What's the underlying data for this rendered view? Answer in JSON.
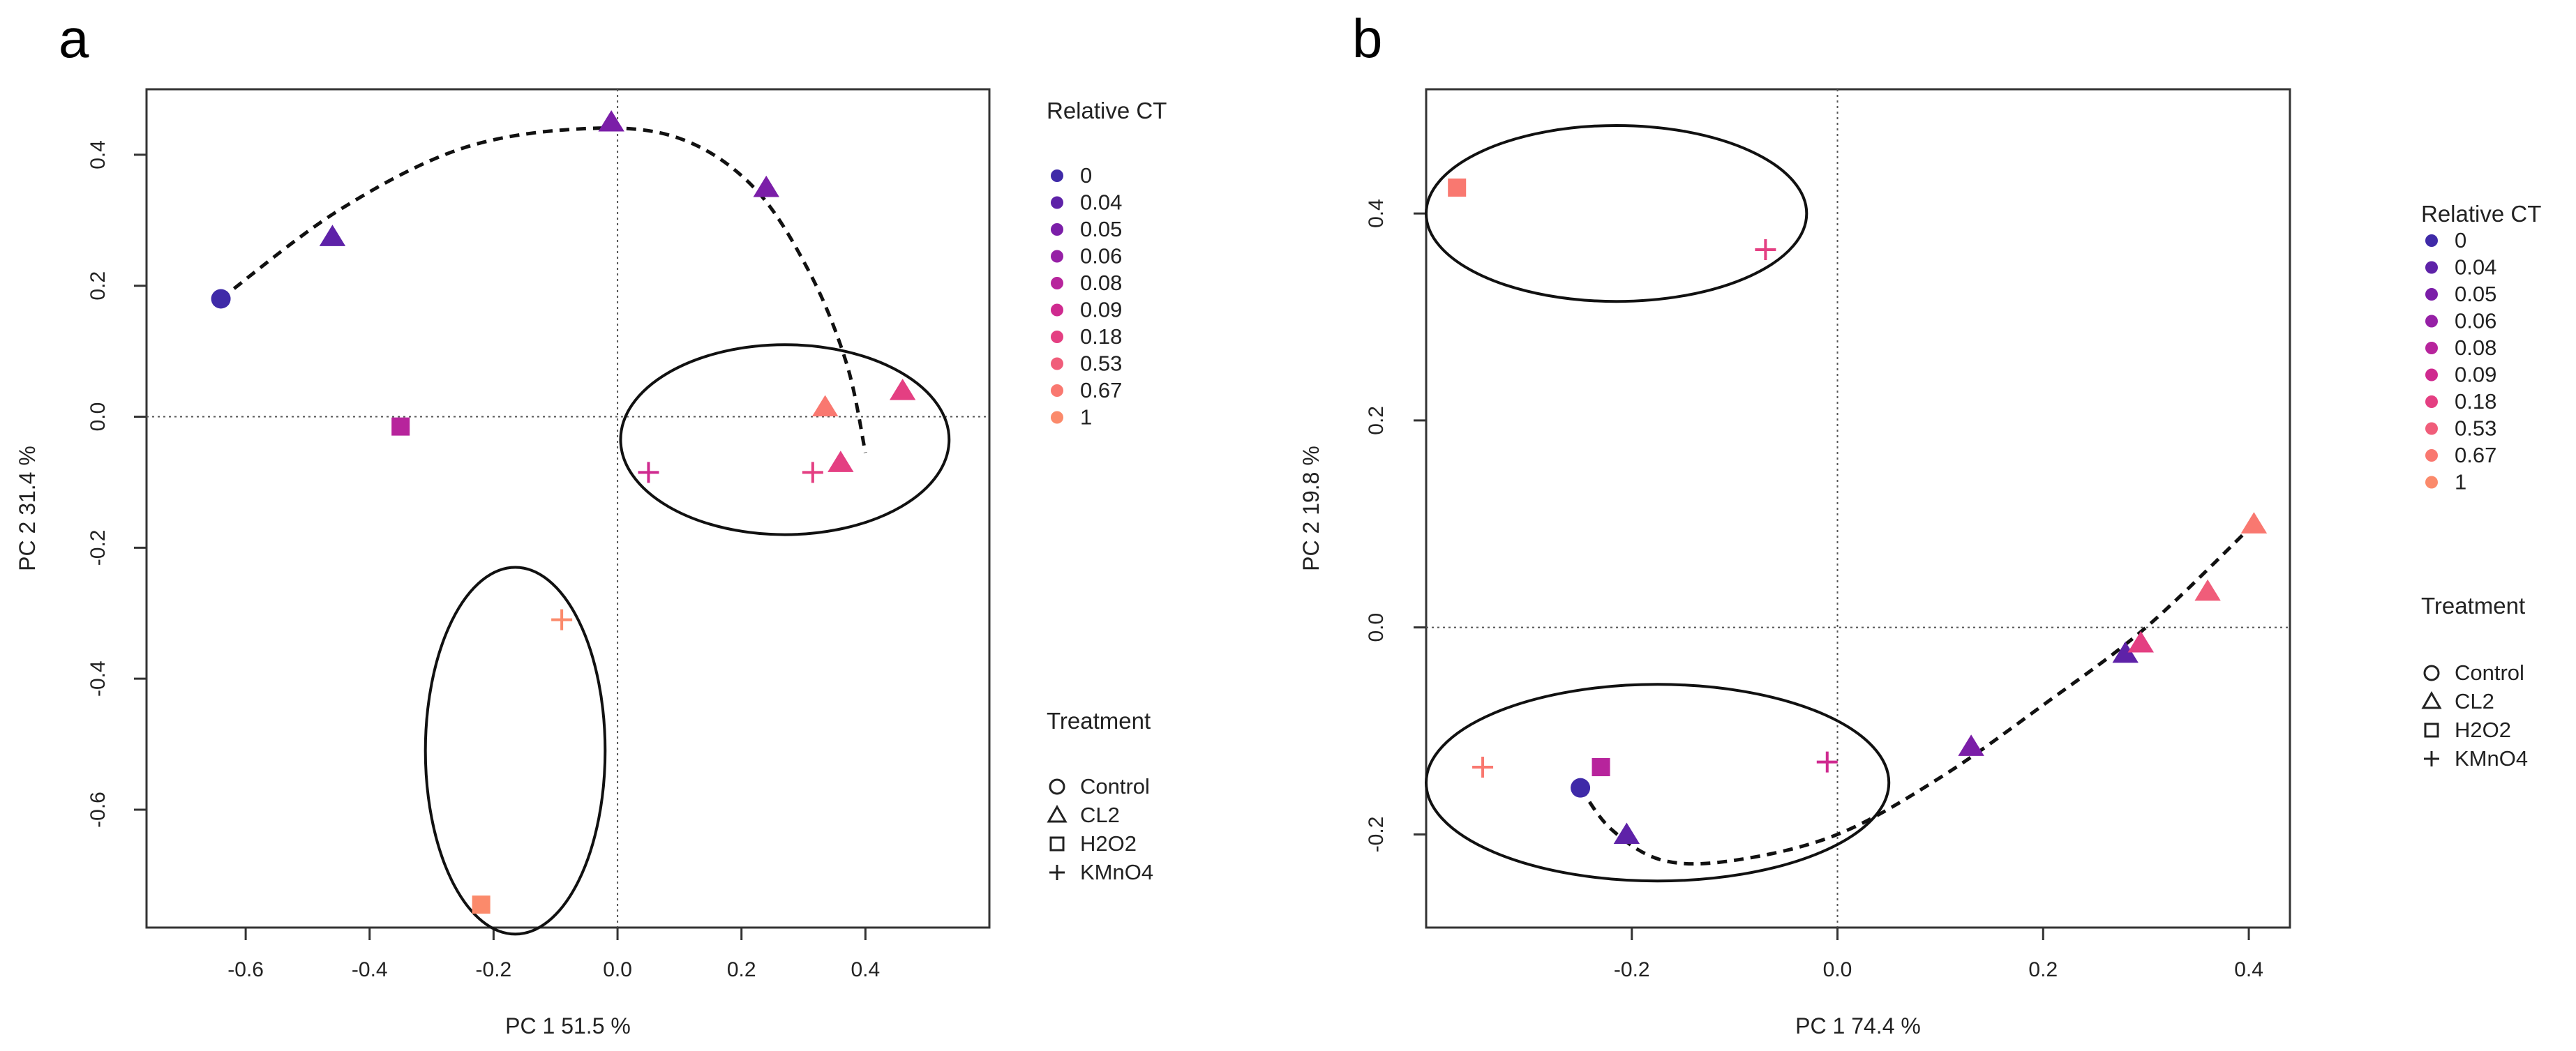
{
  "legend_titles": {
    "color": "Relative CT",
    "shape": "Treatment"
  },
  "color_legend": [
    {
      "label": "0",
      "color": "#3f2aa8"
    },
    {
      "label": "0.04",
      "color": "#5e22a8"
    },
    {
      "label": "0.05",
      "color": "#7b1ea8"
    },
    {
      "label": "0.06",
      "color": "#9620a6"
    },
    {
      "label": "0.08",
      "color": "#b7249c"
    },
    {
      "label": "0.09",
      "color": "#cf2a8f"
    },
    {
      "label": "0.18",
      "color": "#e43f82"
    },
    {
      "label": "0.53",
      "color": "#f05d7a"
    },
    {
      "label": "0.67",
      "color": "#f97870"
    },
    {
      "label": "1",
      "color": "#fb8a6b"
    }
  ],
  "shape_legend": [
    {
      "label": "Control",
      "shape": "circle"
    },
    {
      "label": "CL2",
      "shape": "triangle"
    },
    {
      "label": "H2O2",
      "shape": "square"
    },
    {
      "label": "KMnO4",
      "shape": "plus"
    }
  ],
  "chart_data": [
    {
      "panel": "a",
      "type": "scatter",
      "xlabel": "PC 1  51.5 %",
      "ylabel": "PC 2  31.4 %",
      "xlim": [
        -0.76,
        0.6
      ],
      "ylim": [
        -0.78,
        0.5
      ],
      "xticks": [
        -0.6,
        -0.4,
        -0.2,
        0.0,
        0.2,
        0.4
      ],
      "yticks": [
        -0.6,
        -0.4,
        -0.2,
        0.0,
        0.2,
        0.4
      ],
      "xtick_labels": [
        "-0.6",
        "-0.4",
        "-0.2",
        "0.0",
        "0.2",
        "0.4"
      ],
      "ytick_labels": [
        "-0.6",
        "-0.4",
        "-0.2",
        "0.0",
        "0.2",
        "0.4"
      ],
      "reference_lines": {
        "x": 0,
        "y": 0
      },
      "points": [
        {
          "x": -0.64,
          "y": 0.18,
          "shape": "circle",
          "ct": "0"
        },
        {
          "x": -0.46,
          "y": 0.275,
          "shape": "triangle",
          "ct": "0.04"
        },
        {
          "x": -0.01,
          "y": 0.45,
          "shape": "triangle",
          "ct": "0.05"
        },
        {
          "x": 0.24,
          "y": 0.35,
          "shape": "triangle",
          "ct": "0.05"
        },
        {
          "x": -0.35,
          "y": -0.015,
          "shape": "square",
          "ct": "0.08"
        },
        {
          "x": 0.05,
          "y": -0.085,
          "shape": "plus",
          "ct": "0.09"
        },
        {
          "x": 0.315,
          "y": -0.085,
          "shape": "plus",
          "ct": "0.18"
        },
        {
          "x": 0.36,
          "y": -0.07,
          "shape": "triangle",
          "ct": "0.18"
        },
        {
          "x": 0.46,
          "y": 0.04,
          "shape": "triangle",
          "ct": "0.18"
        },
        {
          "x": 0.335,
          "y": 0.015,
          "shape": "triangle",
          "ct": "0.67"
        },
        {
          "x": -0.09,
          "y": -0.31,
          "shape": "plus",
          "ct": "1"
        },
        {
          "x": -0.22,
          "y": -0.745,
          "shape": "square",
          "ct": "1"
        }
      ],
      "trend_curve": [
        [
          -0.64,
          0.18
        ],
        [
          -0.45,
          0.315
        ],
        [
          -0.25,
          0.41
        ],
        [
          -0.05,
          0.44
        ],
        [
          0.1,
          0.425
        ],
        [
          0.22,
          0.35
        ],
        [
          0.31,
          0.22
        ],
        [
          0.37,
          0.08
        ],
        [
          0.4,
          -0.055
        ]
      ],
      "ellipses": [
        {
          "cx": 0.27,
          "cy": -0.035,
          "rx": 0.265,
          "ry": 0.145
        },
        {
          "cx": -0.165,
          "cy": -0.51,
          "rx": 0.145,
          "ry": 0.28
        }
      ]
    },
    {
      "panel": "b",
      "type": "scatter",
      "xlabel": "PC 1  74.4 %",
      "ylabel": "PC 2  19.8 %",
      "xlim": [
        -0.4,
        0.44
      ],
      "ylim": [
        -0.29,
        0.52
      ],
      "xticks": [
        -0.2,
        0.0,
        0.2,
        0.4
      ],
      "yticks": [
        -0.2,
        0.0,
        0.2,
        0.4
      ],
      "xtick_labels": [
        "-0.2",
        "0.0",
        "0.2",
        "0.4"
      ],
      "ytick_labels": [
        "-0.2",
        "0.0",
        "0.2",
        "0.4"
      ],
      "reference_lines": {
        "x": 0,
        "y": 0
      },
      "points": [
        {
          "x": -0.25,
          "y": -0.155,
          "shape": "circle",
          "ct": "0"
        },
        {
          "x": -0.205,
          "y": -0.2,
          "shape": "triangle",
          "ct": "0.04"
        },
        {
          "x": 0.13,
          "y": -0.115,
          "shape": "triangle",
          "ct": "0.05"
        },
        {
          "x": 0.28,
          "y": -0.025,
          "shape": "triangle",
          "ct": "0.04"
        },
        {
          "x": 0.295,
          "y": -0.015,
          "shape": "triangle",
          "ct": "0.18"
        },
        {
          "x": 0.36,
          "y": 0.035,
          "shape": "triangle",
          "ct": "0.53"
        },
        {
          "x": 0.405,
          "y": 0.1,
          "shape": "triangle",
          "ct": "0.67"
        },
        {
          "x": -0.23,
          "y": -0.135,
          "shape": "square",
          "ct": "0.08"
        },
        {
          "x": -0.01,
          "y": -0.13,
          "shape": "plus",
          "ct": "0.09"
        },
        {
          "x": -0.345,
          "y": -0.135,
          "shape": "plus",
          "ct": "0.67"
        },
        {
          "x": -0.07,
          "y": 0.365,
          "shape": "plus",
          "ct": "0.18"
        },
        {
          "x": -0.37,
          "y": 0.425,
          "shape": "square",
          "ct": "0.67"
        }
      ],
      "trend_curve": [
        [
          -0.25,
          -0.155
        ],
        [
          -0.22,
          -0.195
        ],
        [
          -0.17,
          -0.225
        ],
        [
          -0.1,
          -0.225
        ],
        [
          0.0,
          -0.2
        ],
        [
          0.1,
          -0.145
        ],
        [
          0.2,
          -0.075
        ],
        [
          0.3,
          0.0
        ],
        [
          0.405,
          0.1
        ]
      ],
      "ellipses": [
        {
          "cx": -0.215,
          "cy": 0.4,
          "rx": 0.185,
          "ry": 0.085
        },
        {
          "cx": -0.175,
          "cy": -0.15,
          "rx": 0.225,
          "ry": 0.095
        }
      ]
    }
  ],
  "panels": {
    "a": {
      "letter": "a"
    },
    "b": {
      "letter": "b"
    }
  }
}
